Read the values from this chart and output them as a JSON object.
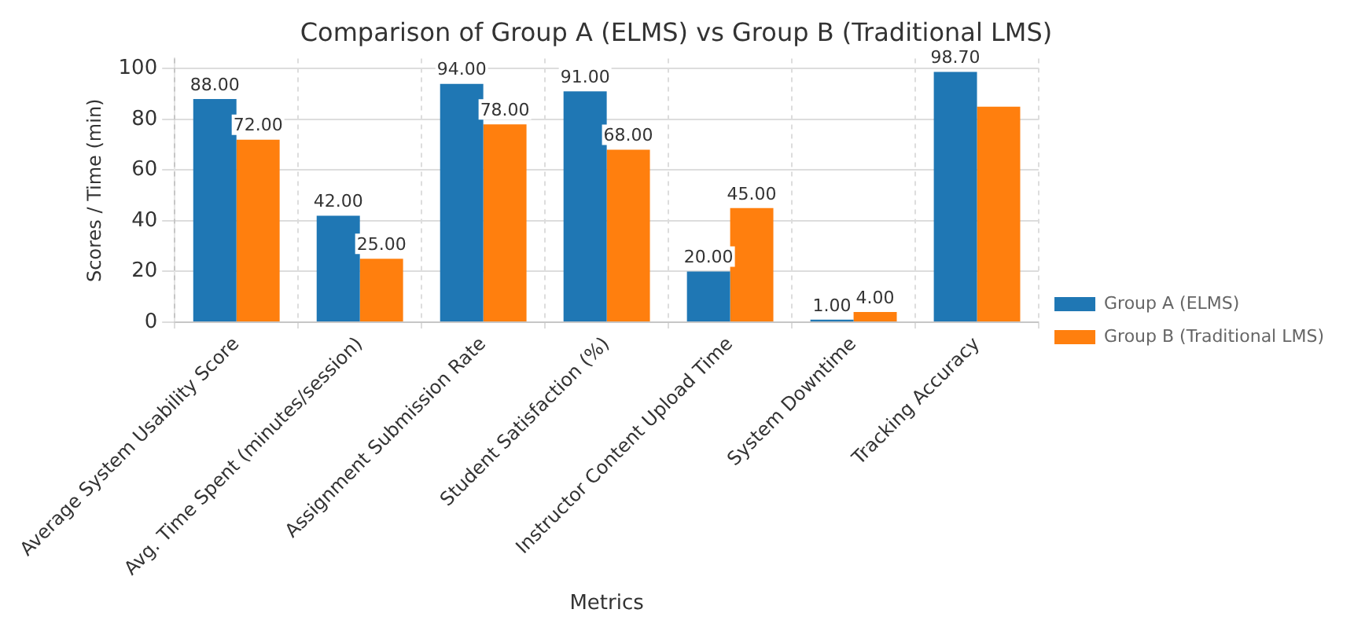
{
  "chart_data": {
    "type": "bar",
    "title": "Comparison of Group A (ELMS) vs Group B (Traditional LMS)",
    "xlabel": "Metrics",
    "ylabel": "Scores / Time (min)",
    "categories": [
      "Average System Usability Score",
      "Avg. Time Spent (minutes/session)",
      "Assignment Submission Rate",
      "Student Satisfaction (%)",
      "Instructor Content Upload Time",
      "System Downtime",
      "Tracking Accuracy"
    ],
    "series": [
      {
        "name": "Group A (ELMS)",
        "color": "#1f77b4",
        "values": [
          88,
          42,
          94,
          91,
          20,
          1,
          98.7
        ],
        "value_labels": [
          "88.00",
          "42.00",
          "94.00",
          "91.00",
          "20.00",
          "1.00",
          "98.70"
        ]
      },
      {
        "name": "Group B (Traditional LMS)",
        "color": "#ff7f0e",
        "values": [
          72,
          25,
          78,
          68,
          45,
          4,
          85
        ],
        "value_labels": [
          "72.00",
          "25.00",
          "78.00",
          "68.00",
          "45.00",
          "4.00",
          null
        ]
      }
    ],
    "ylim": [
      0,
      104
    ],
    "yticks": [
      0,
      20,
      40,
      60,
      80,
      100
    ],
    "grid": true,
    "legend": "right"
  }
}
